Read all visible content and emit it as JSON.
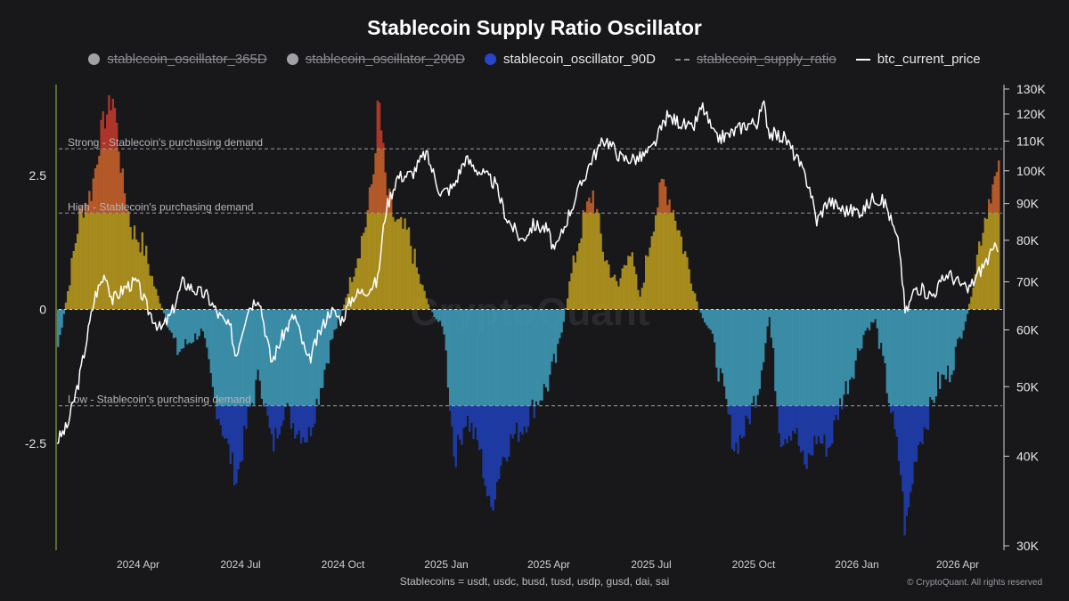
{
  "chart_data": {
    "type": "area",
    "title": "Stablecoin Supply Ratio Oscillator",
    "legend": [
      {
        "name": "stablecoin_oscillator_365D",
        "color": "#a1a1a6",
        "enabled": false,
        "marker": "dot"
      },
      {
        "name": "stablecoin_oscillator_200D",
        "color": "#a1a1a6",
        "enabled": false,
        "marker": "dot"
      },
      {
        "name": "stablecoin_oscillator_90D",
        "color": "#2546c9",
        "enabled": true,
        "marker": "dot"
      },
      {
        "name": "stablecoin_supply_ratio",
        "color": "#8b8b90",
        "enabled": false,
        "marker": "dash"
      },
      {
        "name": "btc_current_price",
        "color": "#ffffff",
        "enabled": true,
        "marker": "line"
      }
    ],
    "legend_position": "top-center",
    "x_ticks": [
      "2024 Apr",
      "2024 Jul",
      "2024 Oct",
      "2025 Jan",
      "2025 Apr",
      "2025 Jul",
      "2025 Oct",
      "2026 Jan",
      "2026 Apr"
    ],
    "y_left": {
      "ticks": [
        2.5,
        0,
        -2.5
      ],
      "tick_labels": [
        "2.5",
        "0",
        "-2.5"
      ],
      "range": [
        -4.5,
        4.2
      ]
    },
    "y_right": {
      "scale": "log",
      "ticks": [
        30000,
        40000,
        50000,
        60000,
        70000,
        80000,
        90000,
        100000,
        110000,
        120000,
        130000
      ],
      "tick_labels": [
        "30K",
        "40K",
        "50K",
        "60K",
        "70K",
        "80K",
        "90K",
        "100K",
        "110K",
        "120K",
        "130K"
      ]
    },
    "thresholds": [
      {
        "label": "Strong - Stablecoin's purchasing demand",
        "value": 3.0
      },
      {
        "label": "High - Stablecoin's purchasing demand",
        "value": 1.8
      },
      {
        "label": "Low - Stablecoin's purchasing demand",
        "value": -1.8
      }
    ],
    "oscillator_bands": {
      "strong_color": "#c0392b",
      "high_color": "#c7612a",
      "positive_color": "#b89a1e",
      "negative_color": "#3f9bb8",
      "low_color": "#1f3fb4"
    },
    "x_range": [
      "2024-02-01",
      "2026-05-01"
    ],
    "oscillator_90D": {
      "x": [
        "2024-02-01",
        "2024-02-10",
        "2024-02-20",
        "2024-03-01",
        "2024-03-10",
        "2024-03-20",
        "2024-03-28",
        "2024-04-05",
        "2024-04-15",
        "2024-04-25",
        "2024-05-05",
        "2024-05-15",
        "2024-05-25",
        "2024-06-05",
        "2024-06-15",
        "2024-06-25",
        "2024-07-05",
        "2024-07-15",
        "2024-07-25",
        "2024-08-05",
        "2024-08-15",
        "2024-08-25",
        "2024-09-05",
        "2024-09-15",
        "2024-09-25",
        "2024-10-05",
        "2024-10-15",
        "2024-10-25",
        "2024-11-01",
        "2024-11-05",
        "2024-11-12",
        "2024-11-20",
        "2024-12-01",
        "2024-12-10",
        "2024-12-20",
        "2025-01-01",
        "2025-01-10",
        "2025-01-20",
        "2025-02-01",
        "2025-02-10",
        "2025-02-20",
        "2025-03-01",
        "2025-03-10",
        "2025-03-20",
        "2025-04-01",
        "2025-04-10",
        "2025-04-20",
        "2025-05-01",
        "2025-05-10",
        "2025-05-20",
        "2025-06-01",
        "2025-06-10",
        "2025-06-20",
        "2025-07-01",
        "2025-07-10",
        "2025-07-20",
        "2025-08-01",
        "2025-08-10",
        "2025-08-20",
        "2025-09-01",
        "2025-09-10",
        "2025-09-20",
        "2025-10-01",
        "2025-10-10",
        "2025-10-20",
        "2025-11-01",
        "2025-11-10",
        "2025-11-20",
        "2025-12-01",
        "2025-12-10",
        "2025-12-20",
        "2026-01-01",
        "2026-01-10",
        "2026-01-20",
        "2026-02-01",
        "2026-02-05",
        "2026-02-15",
        "2026-02-25",
        "2026-03-05",
        "2026-03-15",
        "2026-03-25",
        "2026-04-01",
        "2026-04-10",
        "2026-04-20",
        "2026-04-28"
      ],
      "values": [
        -0.7,
        0.4,
        1.8,
        2.2,
        3.4,
        4.0,
        2.4,
        1.5,
        1.2,
        0.4,
        -0.2,
        -0.8,
        -0.6,
        -0.4,
        -1.6,
        -2.4,
        -3.2,
        -2.0,
        -1.2,
        -2.6,
        -1.8,
        -2.2,
        -2.4,
        -1.5,
        -0.6,
        0.0,
        0.8,
        1.6,
        2.6,
        4.0,
        2.2,
        1.6,
        1.4,
        0.6,
        0.0,
        -0.4,
        -2.8,
        -2.0,
        -2.6,
        -3.8,
        -2.8,
        -2.4,
        -2.2,
        -1.8,
        -1.4,
        -0.8,
        0.5,
        1.6,
        2.2,
        1.0,
        0.4,
        1.2,
        0.2,
        1.6,
        2.4,
        1.8,
        0.8,
        0.0,
        -0.4,
        -1.6,
        -2.6,
        -2.2,
        -1.4,
        -0.1,
        -2.4,
        -2.2,
        -3.0,
        -2.4,
        -2.6,
        -1.8,
        -1.2,
        -0.4,
        -0.2,
        -1.4,
        -3.0,
        -4.2,
        -2.6,
        -2.0,
        -1.4,
        -1.2,
        -0.5,
        0.0,
        1.2,
        2.2,
        2.6
      ]
    },
    "btc_price": {
      "x": [
        "2024-02-01",
        "2024-02-10",
        "2024-02-20",
        "2024-03-01",
        "2024-03-05",
        "2024-03-14",
        "2024-03-20",
        "2024-04-01",
        "2024-04-10",
        "2024-04-20",
        "2024-05-01",
        "2024-05-10",
        "2024-05-20",
        "2024-06-01",
        "2024-06-10",
        "2024-06-20",
        "2024-07-01",
        "2024-07-05",
        "2024-07-15",
        "2024-07-25",
        "2024-08-05",
        "2024-08-15",
        "2024-08-25",
        "2024-09-06",
        "2024-09-15",
        "2024-09-25",
        "2024-10-05",
        "2024-10-15",
        "2024-10-25",
        "2024-11-05",
        "2024-11-12",
        "2024-11-22",
        "2024-12-05",
        "2024-12-17",
        "2024-12-30",
        "2025-01-10",
        "2025-01-20",
        "2025-02-01",
        "2025-02-15",
        "2025-02-25",
        "2025-03-10",
        "2025-03-20",
        "2025-04-01",
        "2025-04-08",
        "2025-04-20",
        "2025-05-01",
        "2025-05-10",
        "2025-05-22",
        "2025-06-05",
        "2025-06-20",
        "2025-07-01",
        "2025-07-14",
        "2025-07-25",
        "2025-08-05",
        "2025-08-14",
        "2025-08-25",
        "2025-09-05",
        "2025-09-20",
        "2025-10-01",
        "2025-10-06",
        "2025-10-11",
        "2025-10-25",
        "2025-11-05",
        "2025-11-15",
        "2025-11-21",
        "2025-12-01",
        "2025-12-15",
        "2025-12-31",
        "2026-01-10",
        "2026-01-20",
        "2026-02-01",
        "2026-02-06",
        "2026-02-15",
        "2026-03-01",
        "2026-03-15",
        "2026-04-01",
        "2026-04-15",
        "2026-04-28"
      ],
      "values": [
        42000,
        44000,
        51000,
        62000,
        67000,
        72000,
        66000,
        69000,
        70000,
        64000,
        60000,
        63000,
        70000,
        68000,
        67000,
        63000,
        60000,
        55000,
        64000,
        67000,
        54000,
        59000,
        63000,
        54000,
        59000,
        64000,
        62000,
        67000,
        68000,
        70000,
        88000,
        98000,
        99000,
        106000,
        93000,
        95000,
        104000,
        100000,
        96000,
        86000,
        80000,
        84000,
        83000,
        77000,
        87000,
        96000,
        104000,
        111000,
        104000,
        104000,
        107000,
        119000,
        117000,
        114000,
        123000,
        111000,
        112000,
        116000,
        117000,
        124000,
        113000,
        111000,
        103000,
        95000,
        85000,
        91000,
        88000,
        88000,
        92000,
        90000,
        78000,
        63000,
        69000,
        67000,
        72000,
        68000,
        74000,
        79000
      ]
    }
  },
  "footer": {
    "note": "Stablecoins = usdt, usdc, busd, tusd, usdp, gusd, dai, sai",
    "copyright": "© CryptoQuant. All rights reserved"
  },
  "watermark": "CryptoQuant"
}
